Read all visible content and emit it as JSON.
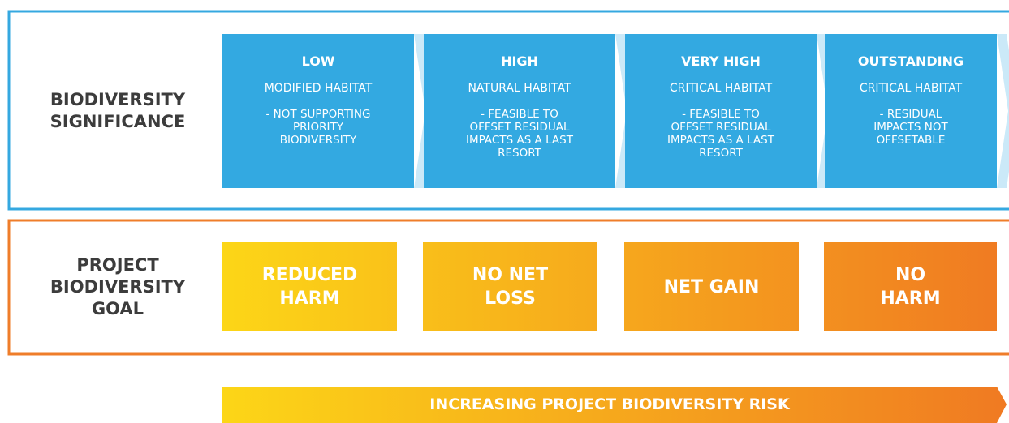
{
  "rows": [
    {
      "label": [
        "BIODIVERSITY",
        "SIGNIFICANCE"
      ],
      "cells": [
        {
          "title": "LOW",
          "habitat": "MODIFIED HABITAT",
          "lines": [
            "- NOT SUPPORTING",
            "PRIORITY",
            "BIODIVERSITY"
          ]
        },
        {
          "title": "HIGH",
          "habitat": "NATURAL HABITAT",
          "lines": [
            "- FEASIBLE TO",
            "OFFSET RESIDUAL",
            "IMPACTS AS A LAST",
            "RESORT"
          ]
        },
        {
          "title": "VERY HIGH",
          "habitat": "CRITICAL HABITAT",
          "lines": [
            "- FEASIBLE TO",
            "OFFSET RESIDUAL",
            "IMPACTS AS A LAST",
            "RESORT"
          ]
        },
        {
          "title": "OUTSTANDING",
          "habitat": "CRITICAL HABITAT",
          "lines": [
            "- RESIDUAL",
            "IMPACTS NOT",
            "OFFSETABLE"
          ]
        }
      ]
    },
    {
      "label": [
        "PROJECT",
        "BIODIVERSITY",
        "GOAL"
      ],
      "goals": [
        [
          "REDUCED",
          "HARM"
        ],
        [
          "NO NET",
          "LOSS"
        ],
        [
          "NET GAIN"
        ],
        [
          "NO",
          "HARM"
        ]
      ]
    }
  ],
  "arrow": "INCREASING PROJECT BIODIVERSITY RISK"
}
